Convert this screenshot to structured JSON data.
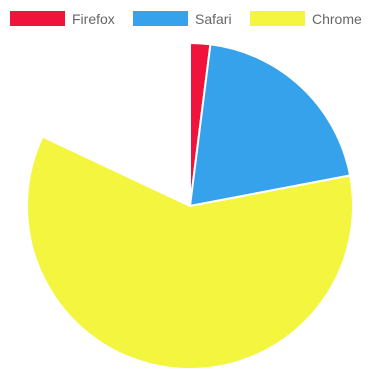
{
  "chart_data": {
    "type": "pie",
    "title": "",
    "legend_position": "top",
    "series": [
      {
        "name": "Firefox",
        "value": 2,
        "color": "#f0143c"
      },
      {
        "name": "Safari",
        "value": 20,
        "color": "#36a2eb"
      },
      {
        "name": "Chrome",
        "value": 60,
        "color": "#f3f53f"
      }
    ]
  }
}
